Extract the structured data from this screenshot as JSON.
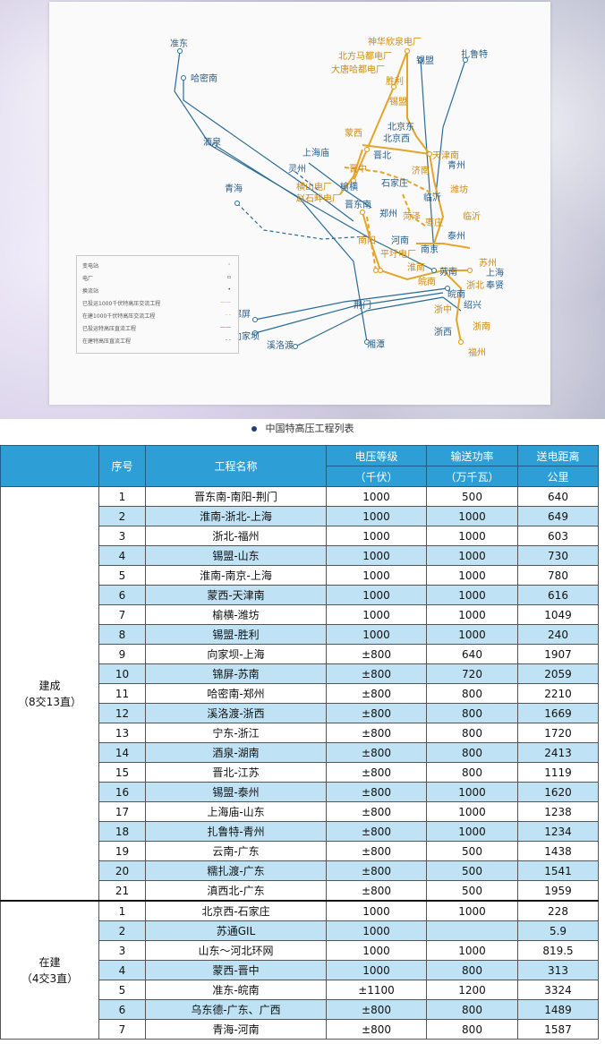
{
  "map": {
    "labels": {
      "zhundong": "准东",
      "hamanan": "哈密南",
      "jiuquan": "酒泉",
      "qinghai": "青海",
      "shenhua": "神华欣泉电厂",
      "beifang": "北方马都电厂",
      "datang": "大唐哈都电厂",
      "ximeng": "锡盟",
      "zhaluote": "扎鲁特",
      "shengli": "胜利",
      "ximeng2": "锡盟",
      "mengxi": "蒙西",
      "beijingdong": "北京东",
      "beijingxi": "北京西",
      "tianjinnan": "天津南",
      "shanghaimiao": "上海庙",
      "lingzhou": "灵州",
      "jinzhong": "晋中",
      "jinbei": "晋北",
      "hengshan": "横山电厂",
      "yuheng": "榆横",
      "shijiazhuang": "石家庄",
      "jinan": "济南",
      "qingzhou": "青州",
      "weifang": "潍坊",
      "linyi": "临沂",
      "zhaoshi": "赵石畔电厂",
      "jidongnan": "晋东南",
      "zhengzhou": "郑州",
      "heze": "菏泽",
      "zaozhuang": "枣庄",
      "nanyang": "南阳",
      "henan": "河南",
      "taizhou": "泰州",
      "nanjing": "南京",
      "suzhou": "苏州",
      "pingyu": "平圩电厂",
      "huainan": "淮南",
      "sunan": "苏南",
      "shanghai": "上海",
      "fengxian": "奉贤",
      "wannan": "皖南",
      "zhebei": "浙北",
      "shaoxing": "绍兴",
      "jingmen": "荆门",
      "zhezhong": "浙中",
      "jinping": "锦屏",
      "xiangjiaba": "向家坝",
      "xiluodu": "溪洛渡",
      "xiangtan": "湘潭",
      "zhexi": "浙西",
      "zhenan": "浙南",
      "fuzhou": "福州"
    },
    "legend": [
      {
        "text": "变电站",
        "sym": "◦"
      },
      {
        "text": "电厂",
        "sym": "▫"
      },
      {
        "text": "换流站",
        "sym": "•"
      },
      {
        "text": "已投运1000千伏特高压交流工程",
        "sym": "——"
      },
      {
        "text": "在建1000千伏特高压交流工程",
        "sym": "- -"
      },
      {
        "text": "已投运特高压直流工程",
        "sym": "——"
      },
      {
        "text": "在建特高压直流工程",
        "sym": "- -"
      }
    ]
  },
  "caption": "中国特高压工程列表",
  "table": {
    "headers": {
      "seq": "序号",
      "name": "工程名称",
      "voltage": "电压等级",
      "voltage_unit": "（千伏）",
      "power": "输送功率",
      "power_unit": "（万千瓦）",
      "distance": "送电距离",
      "distance_unit": "公里"
    },
    "groups": [
      {
        "label": "建成",
        "sub": "（8交13直）",
        "rows": [
          {
            "seq": "1",
            "name": "晋东南-南阳-荆门",
            "voltage": "1000",
            "power": "500",
            "distance": "640"
          },
          {
            "seq": "2",
            "name": "淮南-浙北-上海",
            "voltage": "1000",
            "power": "1000",
            "distance": "649"
          },
          {
            "seq": "3",
            "name": "浙北-福州",
            "voltage": "1000",
            "power": "1000",
            "distance": "603"
          },
          {
            "seq": "4",
            "name": "锡盟-山东",
            "voltage": "1000",
            "power": "1000",
            "distance": "730"
          },
          {
            "seq": "5",
            "name": "淮南-南京-上海",
            "voltage": "1000",
            "power": "1000",
            "distance": "780"
          },
          {
            "seq": "6",
            "name": "蒙西-天津南",
            "voltage": "1000",
            "power": "1000",
            "distance": "616"
          },
          {
            "seq": "7",
            "name": "榆横-潍坊",
            "voltage": "1000",
            "power": "1000",
            "distance": "1049"
          },
          {
            "seq": "8",
            "name": "锡盟-胜利",
            "voltage": "1000",
            "power": "1000",
            "distance": "240"
          },
          {
            "seq": "9",
            "name": "向家坝-上海",
            "voltage": "±800",
            "power": "640",
            "distance": "1907"
          },
          {
            "seq": "10",
            "name": "锦屏-苏南",
            "voltage": "±800",
            "power": "720",
            "distance": "2059"
          },
          {
            "seq": "11",
            "name": "哈密南-郑州",
            "voltage": "±800",
            "power": "800",
            "distance": "2210"
          },
          {
            "seq": "12",
            "name": "溪洛渡-浙西",
            "voltage": "±800",
            "power": "800",
            "distance": "1669"
          },
          {
            "seq": "13",
            "name": "宁东-浙江",
            "voltage": "±800",
            "power": "800",
            "distance": "1720"
          },
          {
            "seq": "14",
            "name": "酒泉-湖南",
            "voltage": "±800",
            "power": "800",
            "distance": "2413"
          },
          {
            "seq": "15",
            "name": "晋北-江苏",
            "voltage": "±800",
            "power": "800",
            "distance": "1119"
          },
          {
            "seq": "16",
            "name": "锡盟-泰州",
            "voltage": "±800",
            "power": "1000",
            "distance": "1620"
          },
          {
            "seq": "17",
            "name": "上海庙-山东",
            "voltage": "±800",
            "power": "1000",
            "distance": "1238"
          },
          {
            "seq": "18",
            "name": "扎鲁特-青州",
            "voltage": "±800",
            "power": "1000",
            "distance": "1234"
          },
          {
            "seq": "19",
            "name": "云南-广东",
            "voltage": "±800",
            "power": "500",
            "distance": "1438"
          },
          {
            "seq": "20",
            "name": "糯扎渡-广东",
            "voltage": "±800",
            "power": "500",
            "distance": "1541"
          },
          {
            "seq": "21",
            "name": "滇西北-广东",
            "voltage": "±800",
            "power": "500",
            "distance": "1959"
          }
        ]
      },
      {
        "label": "在建",
        "sub": "（4交3直）",
        "rows": [
          {
            "seq": "1",
            "name": "北京西-石家庄",
            "voltage": "1000",
            "power": "1000",
            "distance": "228"
          },
          {
            "seq": "2",
            "name": "苏通GIL",
            "voltage": "1000",
            "power": "",
            "distance": "5.9"
          },
          {
            "seq": "3",
            "name": "山东～河北环网",
            "voltage": "1000",
            "power": "1000",
            "distance": "819.5"
          },
          {
            "seq": "4",
            "name": "蒙西-晋中",
            "voltage": "1000",
            "power": "800",
            "distance": "313"
          },
          {
            "seq": "5",
            "name": "准东-皖南",
            "voltage": "±1100",
            "power": "1200",
            "distance": "3324"
          },
          {
            "seq": "6",
            "name": "乌东德-广东、广西",
            "voltage": "±800",
            "power": "800",
            "distance": "1489"
          },
          {
            "seq": "7",
            "name": "青海-河南",
            "voltage": "±800",
            "power": "800",
            "distance": "1587"
          }
        ]
      }
    ]
  }
}
